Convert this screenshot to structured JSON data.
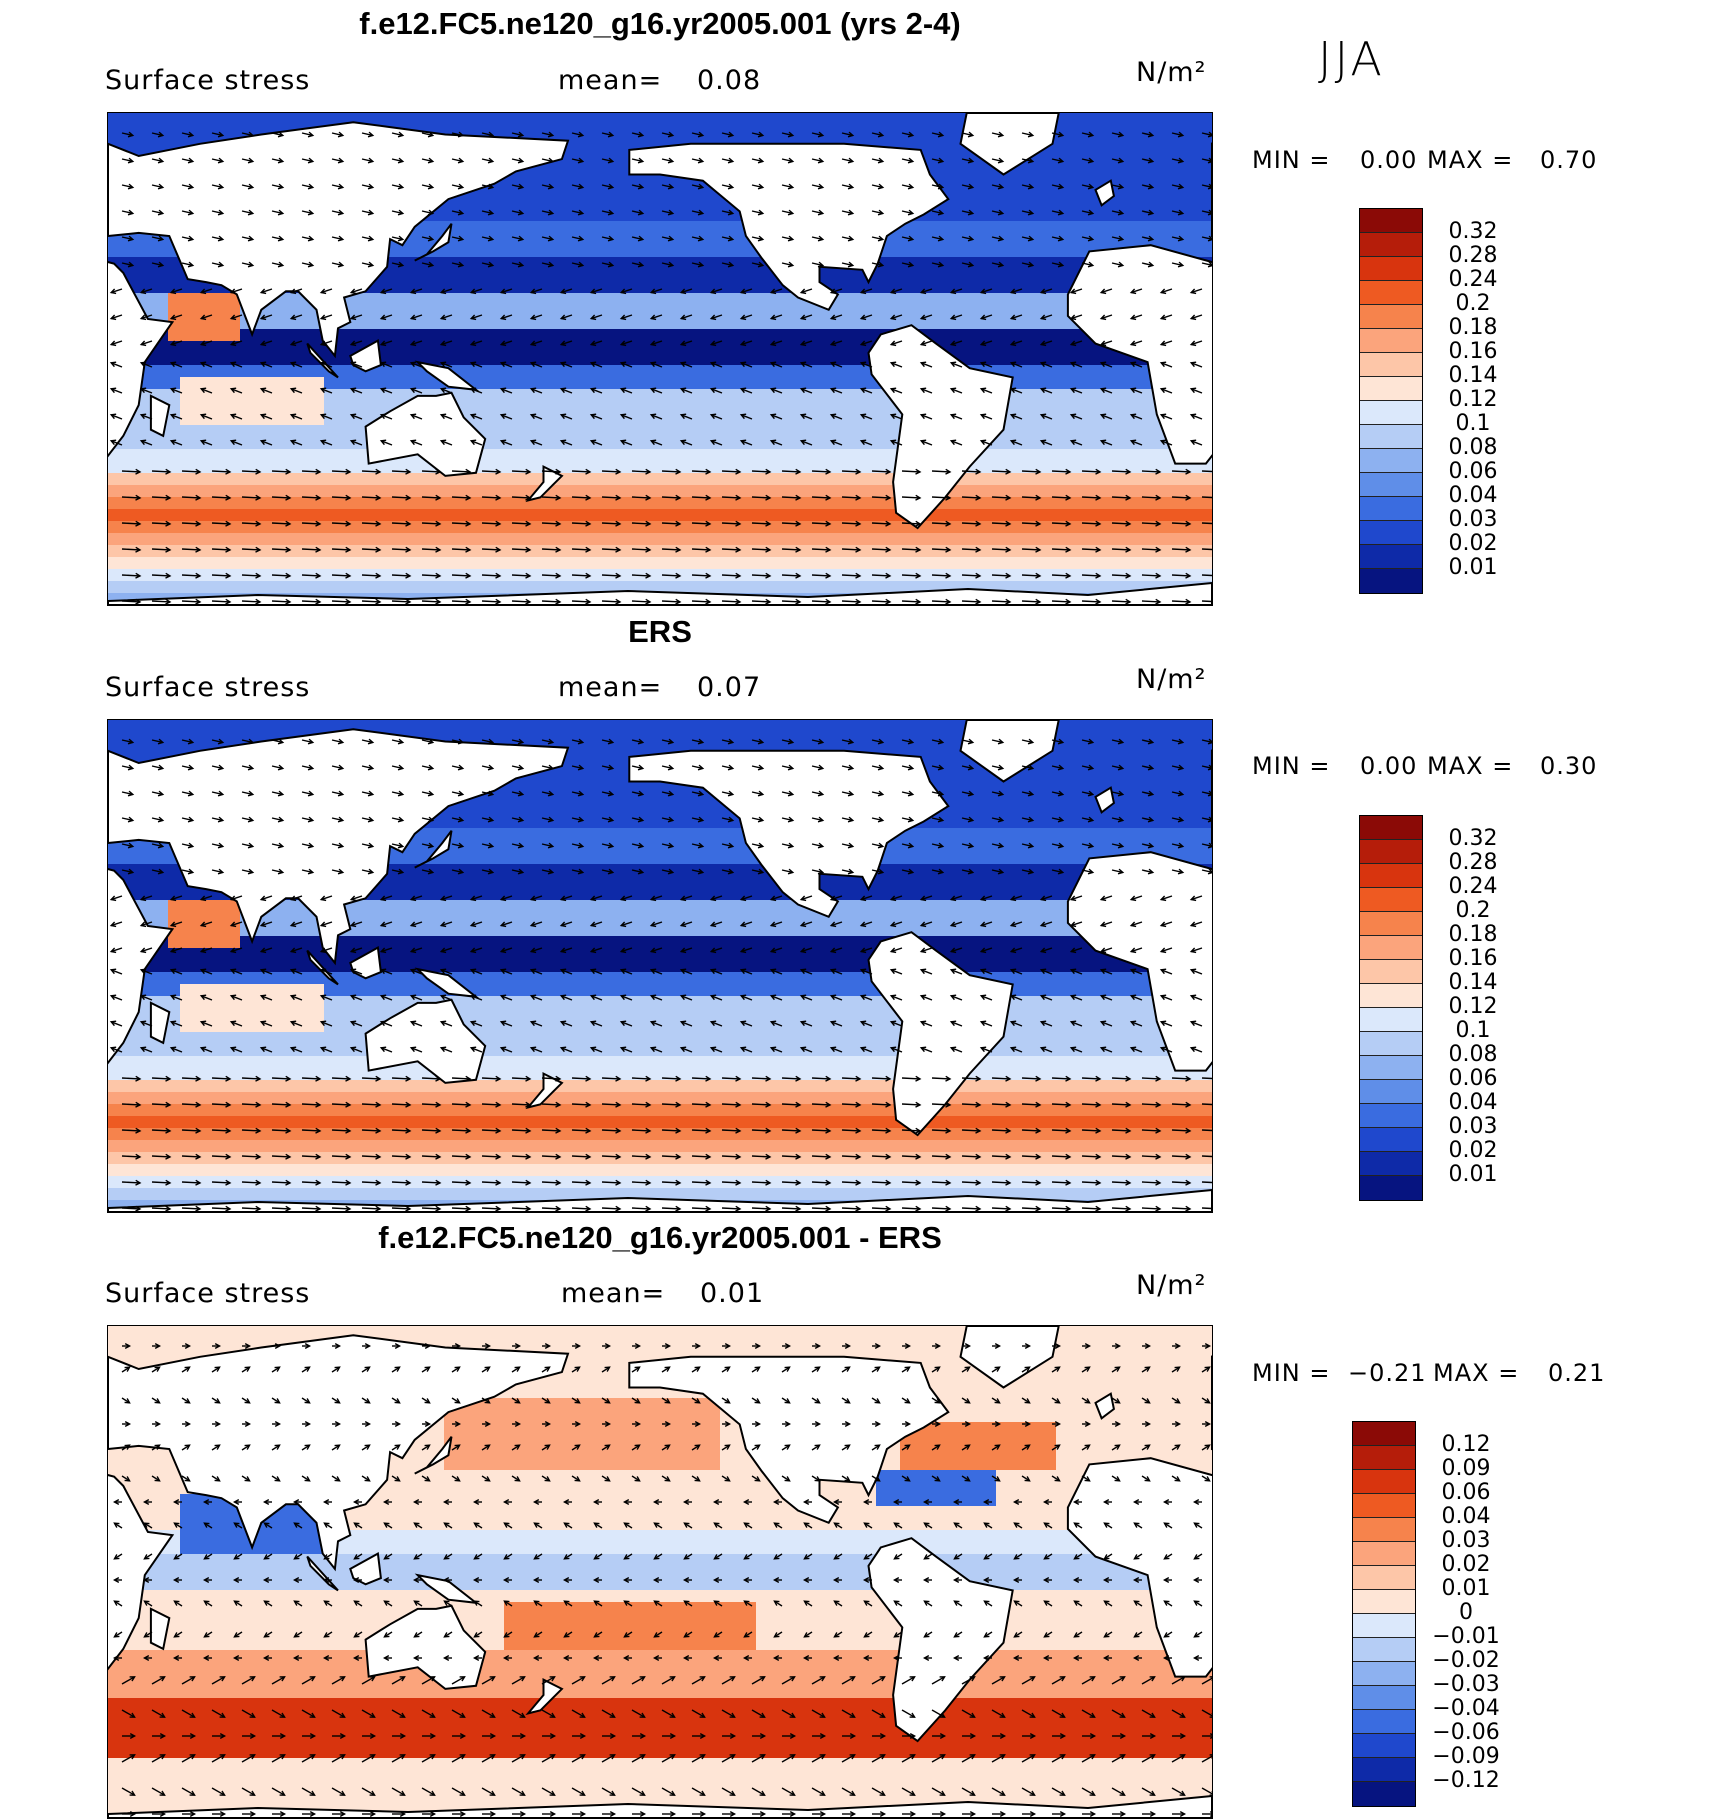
{
  "season": "JJA",
  "units_label": "N/m²",
  "variable_label": "Surface stress",
  "mean_label": "mean=",
  "min_label": "MIN =",
  "max_label": "MAX =",
  "panels": [
    {
      "title": "f.e12.FC5.ne120_g16.yr2005.001 (yrs 2-4)",
      "mean": "0.08",
      "min": "0.00",
      "max": "0.70",
      "colorbar": {
        "levels": [
          "0.32",
          "0.28",
          "0.24",
          "0.2",
          "0.18",
          "0.16",
          "0.14",
          "0.12",
          "0.1",
          "0.08",
          "0.06",
          "0.04",
          "0.03",
          "0.02",
          "0.01"
        ],
        "colors": [
          "#8b0a06",
          "#b51d0a",
          "#d8340e",
          "#ee5a22",
          "#f6834c",
          "#fba47c",
          "#fdc6a8",
          "#fee5d6",
          "#dbe8fb",
          "#b5cdf5",
          "#8db1f0",
          "#5f8ee8",
          "#3a6ce0",
          "#1f48cd",
          "#0e2aa8",
          "#061480"
        ]
      }
    },
    {
      "title": "ERS",
      "mean": "0.07",
      "min": "0.00",
      "max": "0.30",
      "colorbar": {
        "levels": [
          "0.32",
          "0.28",
          "0.24",
          "0.2",
          "0.18",
          "0.16",
          "0.14",
          "0.12",
          "0.1",
          "0.08",
          "0.06",
          "0.04",
          "0.03",
          "0.02",
          "0.01"
        ],
        "colors": [
          "#8b0a06",
          "#b51d0a",
          "#d8340e",
          "#ee5a22",
          "#f6834c",
          "#fba47c",
          "#fdc6a8",
          "#fee5d6",
          "#dbe8fb",
          "#b5cdf5",
          "#8db1f0",
          "#5f8ee8",
          "#3a6ce0",
          "#1f48cd",
          "#0e2aa8",
          "#061480"
        ]
      }
    },
    {
      "title": "f.e12.FC5.ne120_g16.yr2005.001 - ERS",
      "mean": "0.01",
      "min": "−0.21",
      "max": "0.21",
      "colorbar": {
        "levels": [
          "0.12",
          "0.09",
          "0.06",
          "0.04",
          "0.03",
          "0.02",
          "0.01",
          "0",
          "−0.01",
          "−0.02",
          "−0.03",
          "−0.04",
          "−0.06",
          "−0.09",
          "−0.12"
        ],
        "colors": [
          "#8b0a06",
          "#b51d0a",
          "#d8340e",
          "#ee5a22",
          "#f6834c",
          "#fba47c",
          "#fdc6a8",
          "#fee5d6",
          "#dbe8fb",
          "#b5cdf5",
          "#8db1f0",
          "#5f8ee8",
          "#3a6ce0",
          "#1f48cd",
          "#0e2aa8",
          "#061480"
        ]
      }
    }
  ]
}
